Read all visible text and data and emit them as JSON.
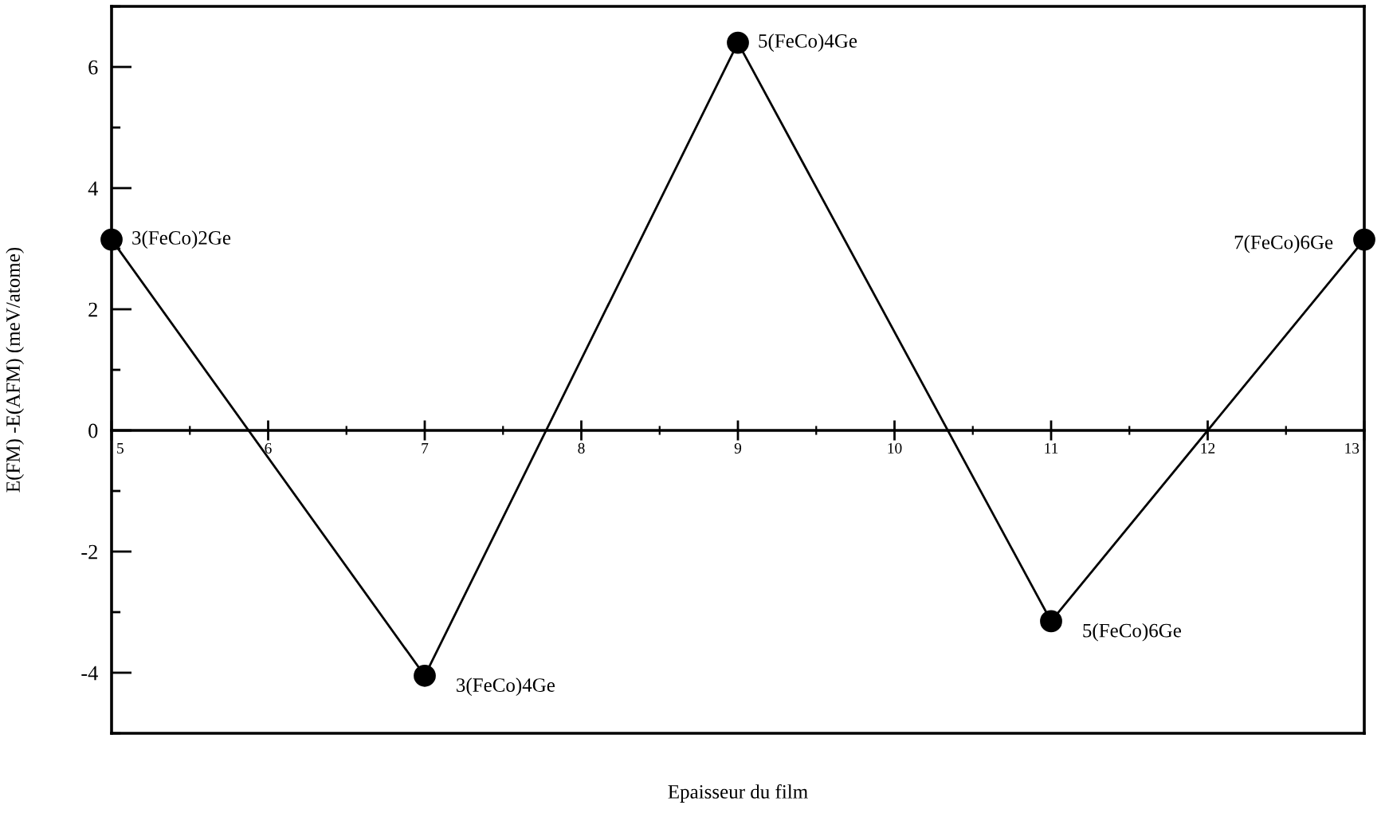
{
  "chart_data": {
    "type": "line",
    "xlabel": "Epaisseur du film",
    "ylabel": "E(FM) -E(AFM) (meV/atome)",
    "x": [
      5,
      7,
      9,
      11,
      13
    ],
    "series": [
      {
        "color": "#000000",
        "values": [
          3.15,
          -4.05,
          6.4,
          -3.15,
          3.15
        ]
      }
    ],
    "xlim": [
      5,
      13
    ],
    "ylim": [
      -5,
      7
    ],
    "xticks": [
      5,
      6,
      7,
      8,
      9,
      10,
      11,
      12,
      13
    ],
    "yticks": [
      -4,
      -2,
      0,
      2,
      4,
      6
    ],
    "marker": "circle",
    "line_style": "solid",
    "annotations": [
      {
        "text": "3(FeCo)2Ge",
        "x": 5,
        "y": 3.15
      },
      {
        "text": "3(FeCo)4Ge",
        "x": 7,
        "y": -4.05
      },
      {
        "text": "5(FeCo)4Ge",
        "x": 9,
        "y": 6.4
      },
      {
        "text": "5(FeCo)6Ge",
        "x": 11,
        "y": -3.15
      },
      {
        "text": "7(FeCo)6Ge",
        "x": 13,
        "y": 3.15
      }
    ]
  }
}
